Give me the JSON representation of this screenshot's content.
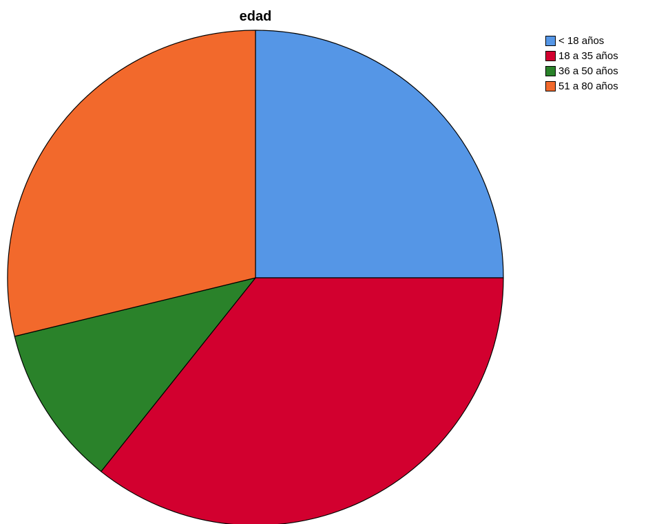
{
  "chart_data": {
    "type": "pie",
    "title": "edad",
    "legend_placement": "top-right",
    "slices": [
      {
        "label": "< 18 años",
        "value": 25.0,
        "color": "#5596E6"
      },
      {
        "label": "18 a 35 años",
        "value": 35.7,
        "color": "#D2002F"
      },
      {
        "label": "36 a 50 años",
        "value": 10.5,
        "color": "#2A822A"
      },
      {
        "label": "51 a 80 años",
        "value": 28.8,
        "color": "#F2692C"
      }
    ]
  }
}
